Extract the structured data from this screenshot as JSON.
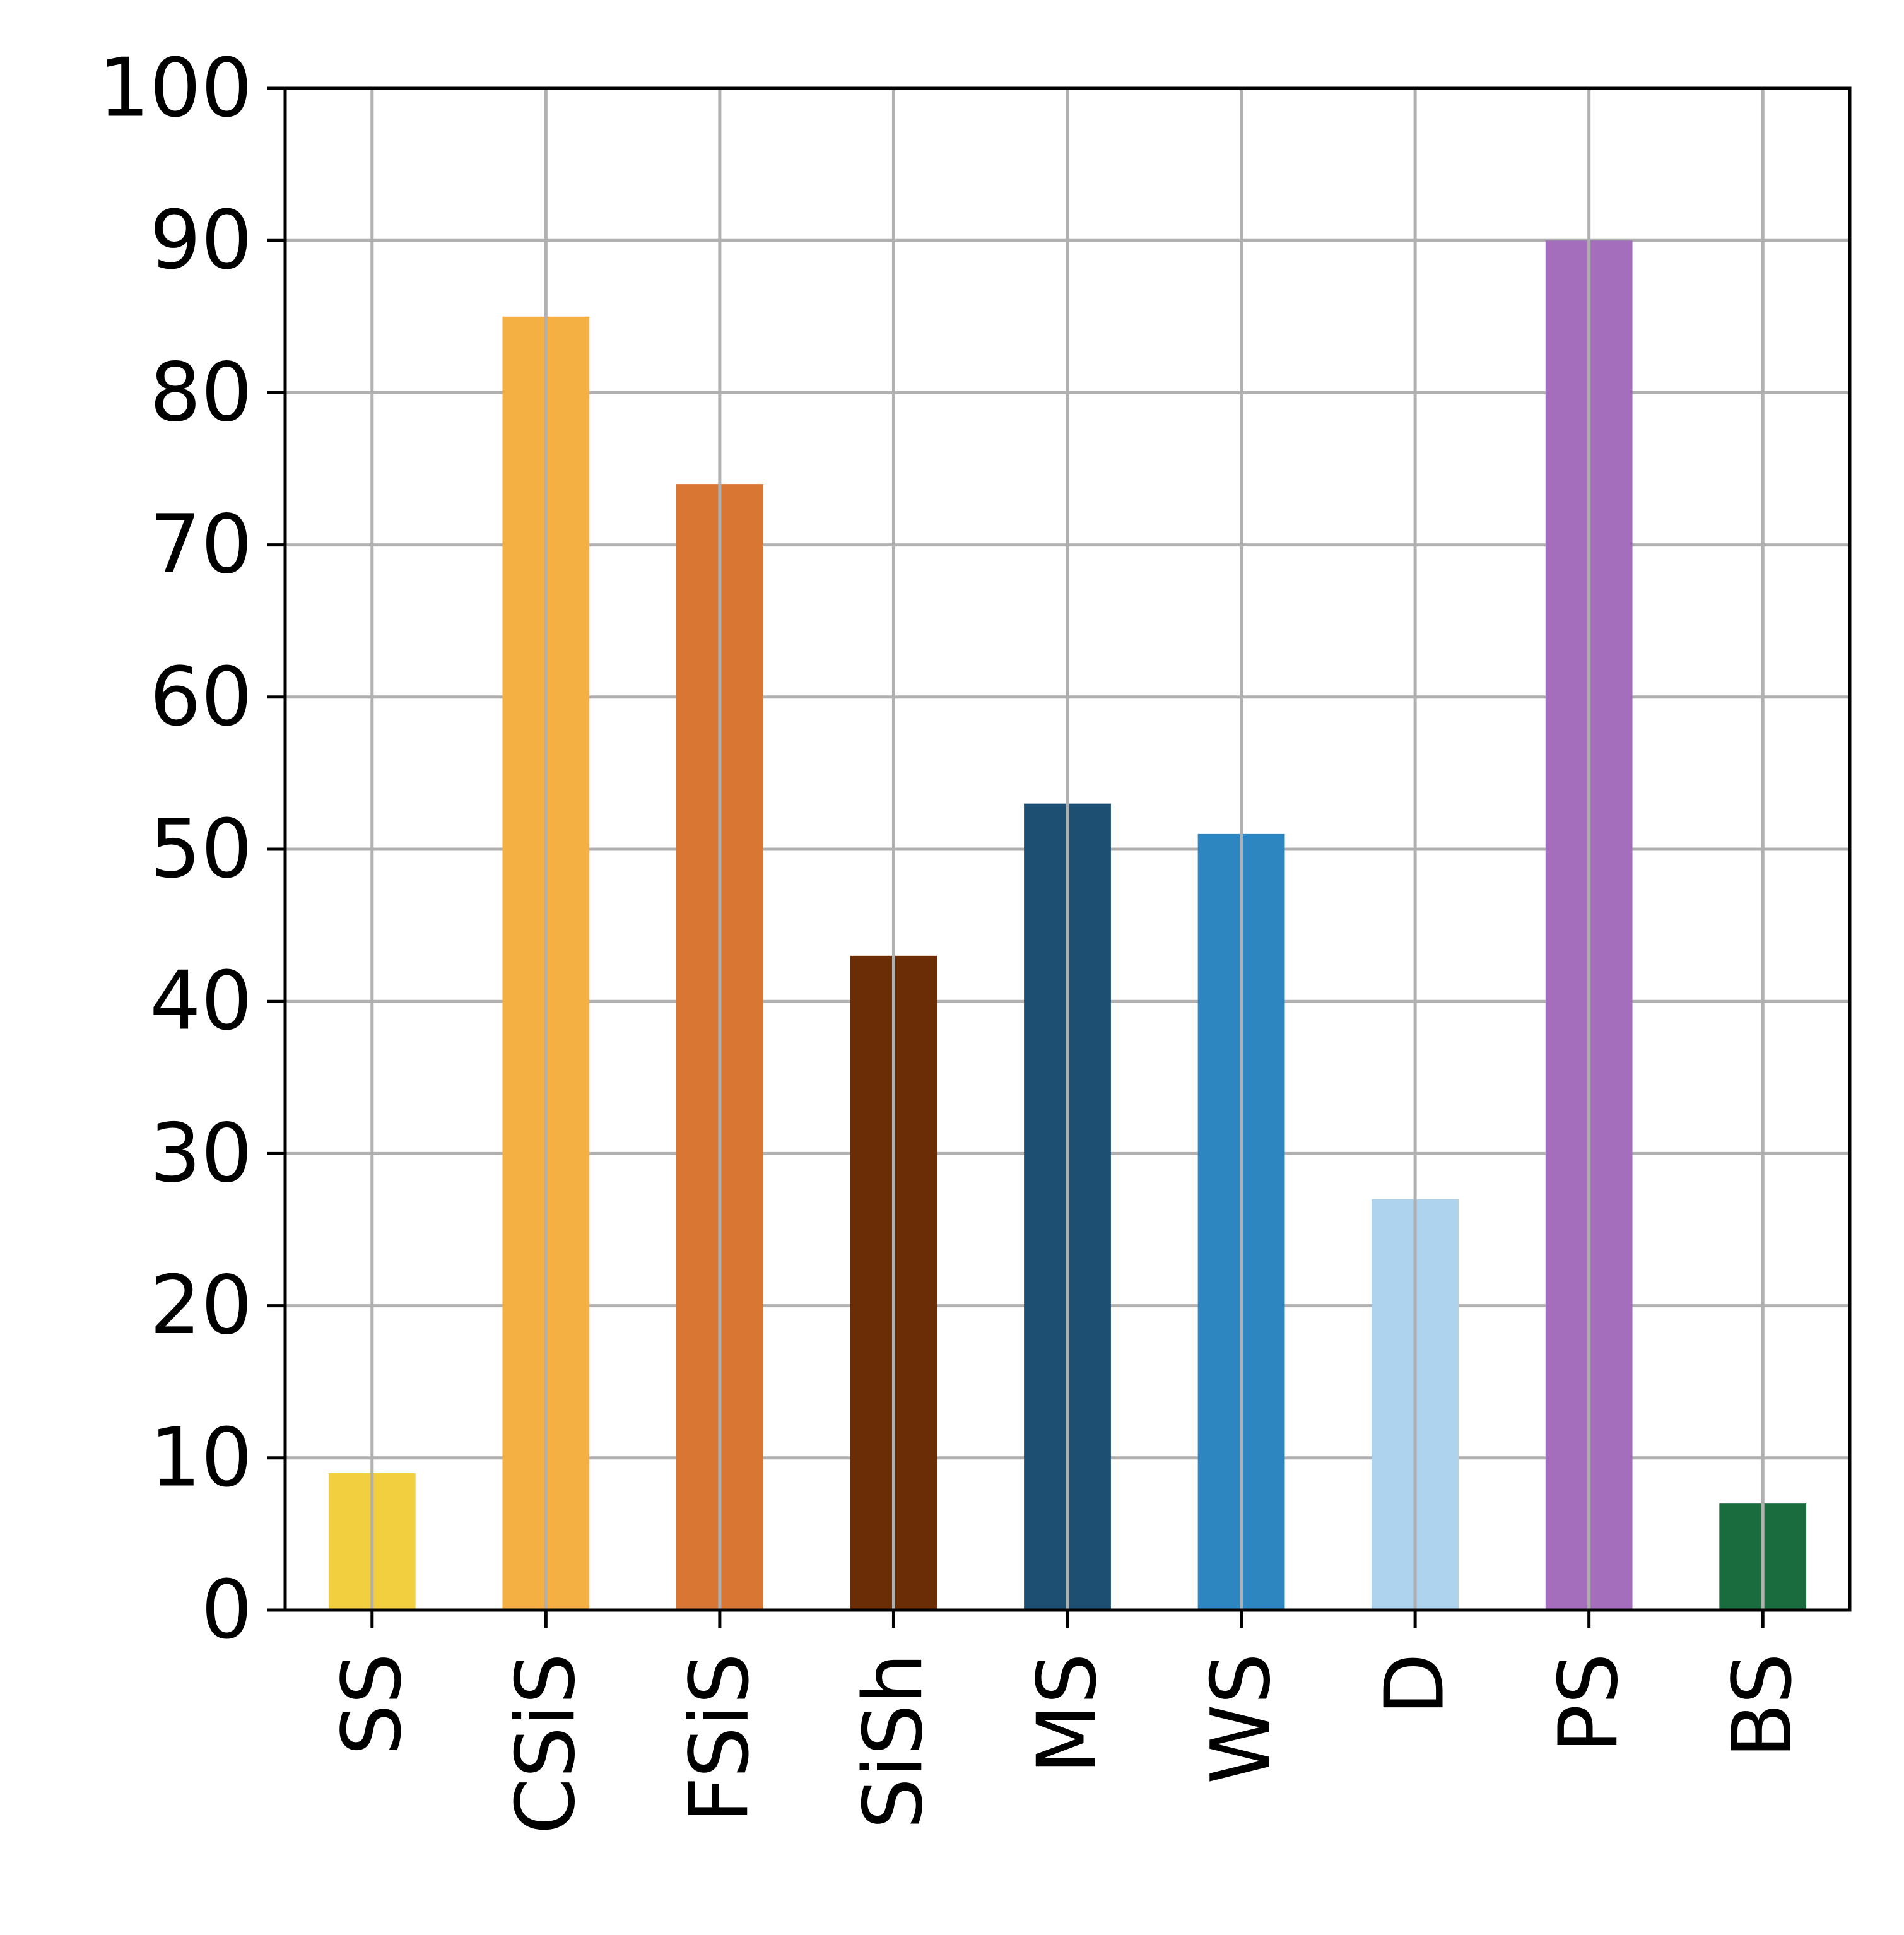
{
  "chart_data": {
    "type": "bar",
    "categories": [
      "SS",
      "CSiS",
      "FSiS",
      "SiSh",
      "MS",
      "WS",
      "D",
      "PS",
      "BS"
    ],
    "values": [
      9,
      85,
      74,
      43,
      53,
      51,
      27,
      90,
      7
    ],
    "colors": [
      "#f2cf3e",
      "#f4b042",
      "#d97634",
      "#6b2d05",
      "#1c4f72",
      "#2d86c0",
      "#aed3ee",
      "#a56ebc",
      "#1a6c3e"
    ],
    "ylim": [
      0,
      100
    ],
    "yticks": [
      "0",
      "10",
      "20",
      "30",
      "40",
      "50",
      "60",
      "70",
      "80",
      "90",
      "100"
    ],
    "grid": true,
    "grid_color": "#b0b0b0",
    "title": "",
    "xlabel": "",
    "ylabel": ""
  }
}
